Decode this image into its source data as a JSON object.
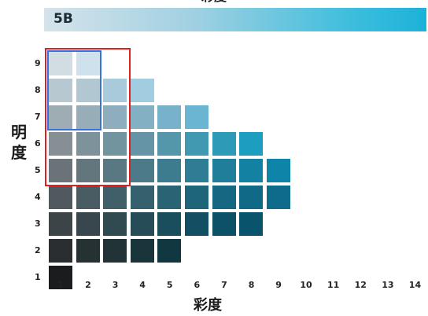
{
  "title": "彩度",
  "hue": "5B",
  "value_axis_label": "明度",
  "chroma_axis_label": "彩度",
  "value_ticks": [
    "1",
    "2",
    "3",
    "4",
    "5",
    "6",
    "7",
    "8",
    "9"
  ],
  "chroma_ticks": [
    "1",
    "2",
    "3",
    "4",
    "5",
    "6",
    "7",
    "8",
    "9",
    "10",
    "11",
    "12",
    "13",
    "14"
  ],
  "chip_rows": [
    {
      "value": 9,
      "colors": [
        "#d1dde3",
        "#cfe1ec"
      ]
    },
    {
      "value": 8,
      "colors": [
        "#b8c8d0",
        "#b1c8d3",
        "#a8cadb",
        "#a2cde0"
      ]
    },
    {
      "value": 7,
      "colors": [
        "#9eacb3",
        "#97adb8",
        "#8eaebd",
        "#84b0c3",
        "#77b2ca",
        "#6cb5d2"
      ]
    },
    {
      "value": 6,
      "colors": [
        "#858f94",
        "#7d929b",
        "#72949f",
        "#6494a5",
        "#5497ab",
        "#4198b1",
        "#2d9bb8",
        "#1b9ec0"
      ]
    },
    {
      "value": 5,
      "colors": [
        "#6a7378",
        "#63767e",
        "#597882",
        "#4c7a88",
        "#3d7b8e",
        "#2e7d95",
        "#1f7f9b",
        "#1381a2",
        "#0d84a8"
      ]
    },
    {
      "value": 4,
      "colors": [
        "#505a5e",
        "#4a5c63",
        "#405f68",
        "#35616e",
        "#296374",
        "#1e657a",
        "#166781",
        "#106986",
        "#0e6b8b"
      ]
    },
    {
      "value": 3,
      "colors": [
        "#3d4448",
        "#37474d",
        "#304a52",
        "#264c57",
        "#1b4e5d",
        "#124f62",
        "#0d5167",
        "#0a536c"
      ]
    },
    {
      "value": 2,
      "colors": [
        "#2a2e30",
        "#263134",
        "#213337",
        "#19353b",
        "#113740"
      ]
    },
    {
      "value": 1,
      "colors": [
        "#1a1c1d"
      ]
    }
  ],
  "selection_red": {
    "chroma_range": [
      1,
      3
    ],
    "value_range": [
      5,
      9
    ]
  },
  "selection_blue": {
    "chroma_range": [
      1,
      2
    ],
    "value_range": [
      7,
      9
    ]
  }
}
